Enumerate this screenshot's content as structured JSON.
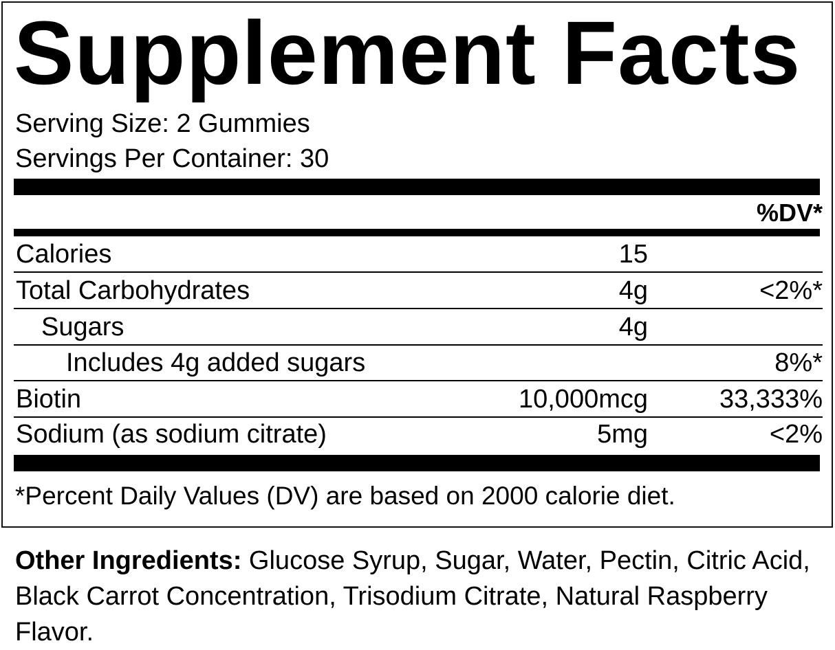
{
  "title": "Supplement Facts",
  "serving_size": "Serving Size: 2 Gummies",
  "servings_per_container": "Servings Per Container: 30",
  "dv_header": "%DV*",
  "rows": [
    {
      "name": "Calories",
      "amount": "15",
      "dv": "",
      "indent": 0
    },
    {
      "name": "Total Carbohydrates",
      "amount": "4g",
      "dv": "<2%*",
      "indent": 0
    },
    {
      "name": "Sugars",
      "amount": "4g",
      "dv": "",
      "indent": 1
    },
    {
      "name": "Includes 4g added sugars",
      "amount": "",
      "dv": "8%*",
      "indent": 2
    },
    {
      "name": "Biotin",
      "amount": "10,000mcg",
      "dv": "33,333%",
      "indent": 0
    },
    {
      "name": "Sodium (as sodium citrate)",
      "amount": "5mg",
      "dv": "<2%",
      "indent": 0
    }
  ],
  "footnote": "*Percent Daily Values (DV) are based on 2000 calorie diet.",
  "ingredients": {
    "label": "Other Ingredients:",
    "text": " Glucose Syrup, Sugar, Water, Pectin, Citric Acid, Black Carrot Concentration, Trisodium Citrate, Natural Raspberry Flavor."
  }
}
